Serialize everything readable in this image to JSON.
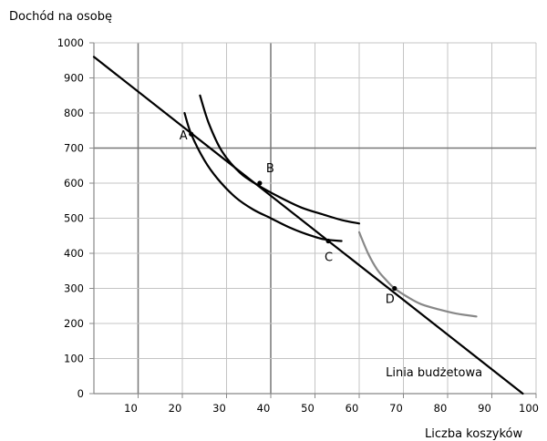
{
  "chart_data": {
    "type": "line",
    "ylabel": "Dochód na osobę",
    "xlabel": "Liczba koszyków",
    "xlim": [
      0,
      100
    ],
    "ylim": [
      0,
      1000
    ],
    "x_ticks": [
      "10",
      "20",
      "30",
      "40",
      "50",
      "60",
      "70",
      "80",
      "90",
      "100"
    ],
    "y_ticks": [
      "0",
      "100",
      "200",
      "300",
      "400",
      "500",
      "600",
      "700",
      "800",
      "900",
      "1000"
    ],
    "grid": "vertical lines every 10, horizontal lines every 100 (major lines at x=10, x=40 and y=700)",
    "series": [
      {
        "name": "Linia budżetowa",
        "color": "#000000",
        "x": [
          0,
          97
        ],
        "y": [
          960,
          0
        ]
      },
      {
        "color": "#000000",
        "x": [
          20.5,
          22,
          25,
          28,
          32,
          36,
          40,
          44,
          48,
          52,
          56
        ],
        "y": [
          800,
          740,
          665,
          612,
          560,
          525,
          500,
          475,
          455,
          440,
          435
        ]
      },
      {
        "color": "#000000",
        "x": [
          24,
          26,
          29,
          33,
          37,
          42,
          47,
          52,
          56,
          60
        ],
        "y": [
          850,
          770,
          690,
          630,
          595,
          560,
          530,
          510,
          495,
          485
        ]
      },
      {
        "color": "#888888",
        "x": [
          60,
          62,
          64,
          66,
          68,
          71,
          74,
          78,
          82,
          86.5
        ],
        "y": [
          460,
          400,
          355,
          325,
          300,
          275,
          255,
          240,
          228,
          220
        ]
      }
    ],
    "points": [
      {
        "label": "A",
        "x": 22,
        "y": 740
      },
      {
        "label": "B",
        "x": 37.5,
        "y": 600
      },
      {
        "label": "C",
        "x": 53,
        "y": 435
      },
      {
        "label": "D",
        "x": 68,
        "y": 300
      }
    ],
    "annotations": [
      {
        "text": "Linia budżetowa",
        "x": 66,
        "y": 50
      }
    ]
  }
}
